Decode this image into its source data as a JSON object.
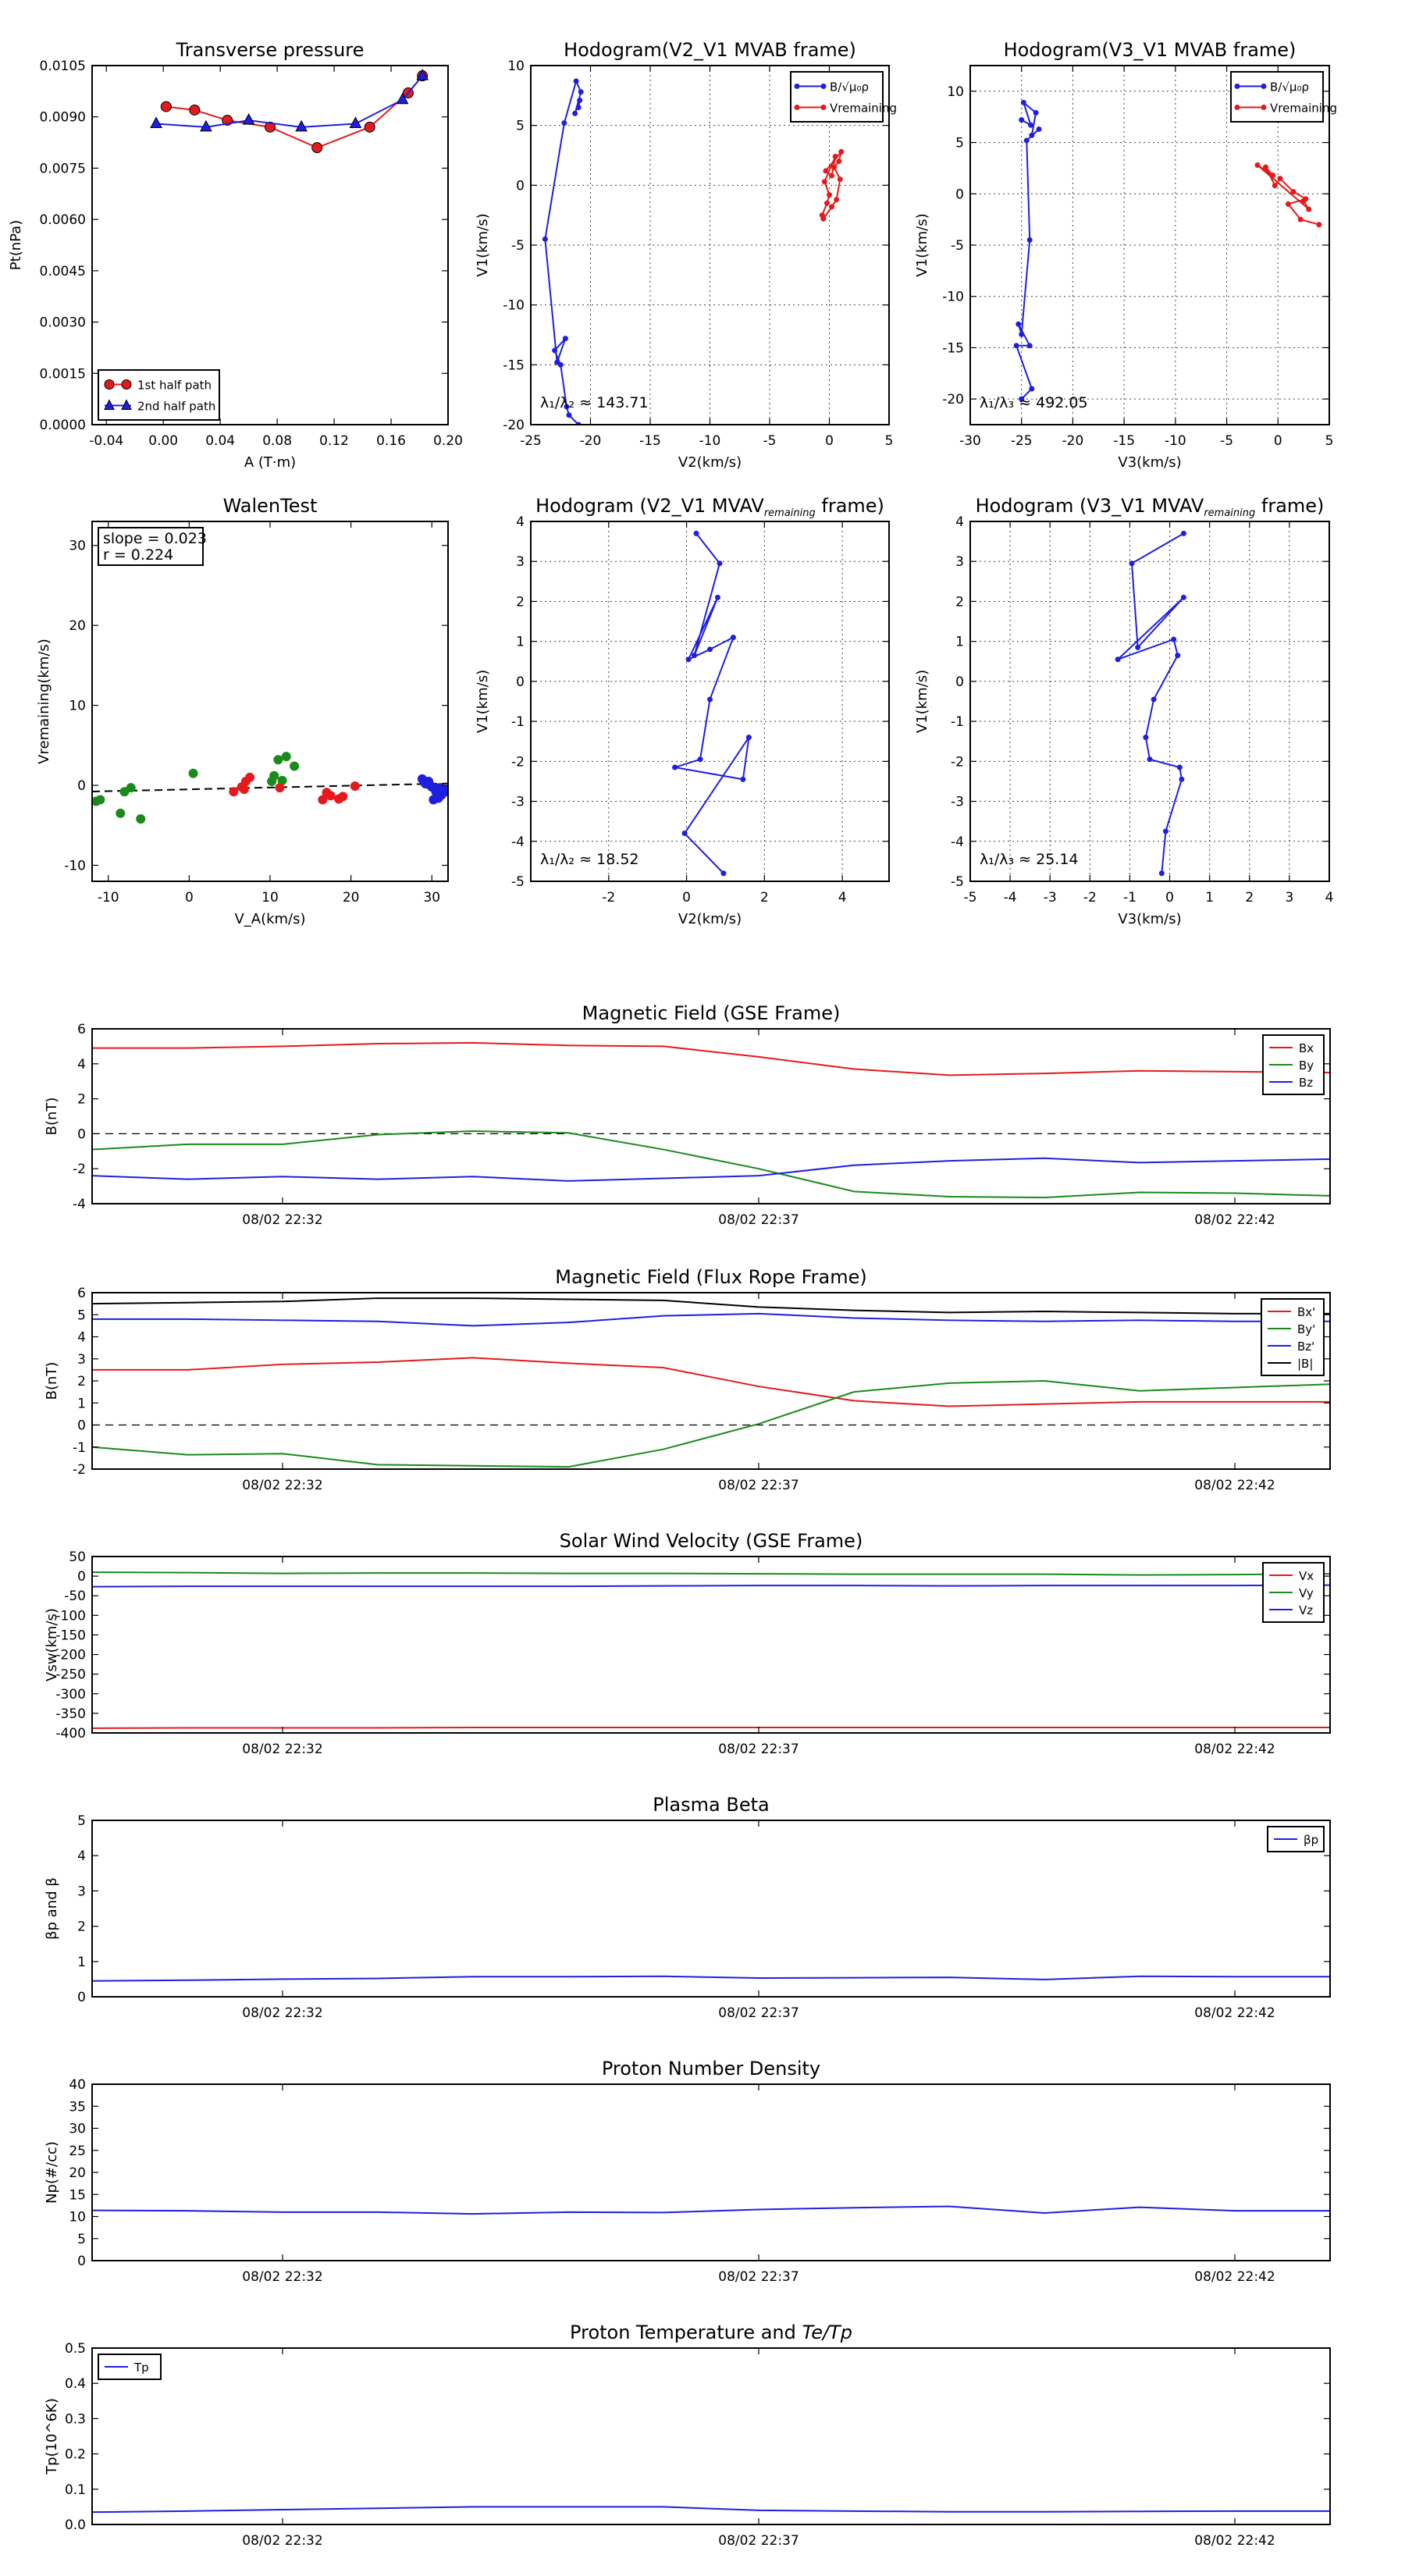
{
  "colors": {
    "red": "#e41a1c",
    "green": "#1a8a1a",
    "blue": "#1f1fe0",
    "black": "#000000",
    "grid": "#444444"
  },
  "chart_data": [
    {
      "id": "transverse-pressure",
      "type": "line",
      "title": "Transverse pressure",
      "xlabel": "A (T·m)",
      "ylabel": "Pt(nPa)",
      "xlim": [
        -0.05,
        0.2
      ],
      "ylim": [
        0.0,
        0.0105
      ],
      "xticks": [
        "-0.04",
        "0.00",
        "0.04",
        "0.08",
        "0.12",
        "0.16",
        "0.20"
      ],
      "yticks": [
        "0.0000",
        "0.0015",
        "0.0030",
        "0.0045",
        "0.0060",
        "0.0075",
        "0.0090",
        "0.0105"
      ],
      "grid": false,
      "legend": "lower-left",
      "series": [
        {
          "name": "1st half path",
          "color": "#e41a1c",
          "marker": "circle",
          "x": [
            0.182,
            0.172,
            0.145,
            0.108,
            0.075,
            0.045,
            0.022,
            0.002
          ],
          "y": [
            0.0102,
            0.0097,
            0.0087,
            0.0081,
            0.0087,
            0.0089,
            0.0092,
            0.0093
          ]
        },
        {
          "name": "2nd half path",
          "color": "#1f1fe0",
          "marker": "triangle",
          "x": [
            0.182,
            0.168,
            0.135,
            0.097,
            0.06,
            0.03,
            -0.005
          ],
          "y": [
            0.0102,
            0.0095,
            0.0088,
            0.0087,
            0.0089,
            0.0087,
            0.0088
          ]
        }
      ]
    },
    {
      "id": "hodogram-v2-v1-mvab",
      "type": "line",
      "title": "Hodogram(V2_V1 MVAB frame)",
      "xlabel": "V2(km/s)",
      "ylabel": "V1(km/s)",
      "xlim": [
        -25,
        5
      ],
      "ylim": [
        -20,
        10
      ],
      "xticks": [
        "-25",
        "-20",
        "-15",
        "-10",
        "-5",
        "0",
        "5"
      ],
      "yticks": [
        "-20",
        "-15",
        "-10",
        "-5",
        "0",
        "5",
        "10"
      ],
      "grid": true,
      "legend": "top-right",
      "annotation": "λ₁/λ₂ ≈ 143.71",
      "series": [
        {
          "name": "B/√μ₀ρ",
          "color": "#1f1fe0",
          "x": [
            -21.0,
            -21.8,
            -22.0,
            -22.5,
            -23.0,
            -22.1,
            -22.8,
            -23.8,
            -22.2,
            -21.2,
            -20.8,
            -21.3,
            -20.9,
            -21.0
          ],
          "y": [
            -20.0,
            -19.2,
            -18.5,
            -15.0,
            -13.8,
            -12.8,
            -14.8,
            -4.5,
            5.2,
            8.7,
            7.8,
            6.0,
            7.1,
            6.5
          ]
        },
        {
          "name": "V_remaining",
          "color": "#e41a1c",
          "x": [
            -0.5,
            0.2,
            0.6,
            0.9,
            0.4,
            0.8,
            1.0,
            -0.3,
            0.2,
            0.5,
            -0.4,
            0.0,
            -0.2,
            -0.6
          ],
          "y": [
            -2.8,
            -1.8,
            -1.2,
            0.5,
            1.5,
            2.0,
            2.8,
            1.2,
            0.8,
            2.4,
            0.3,
            -0.8,
            -1.5,
            -2.5
          ]
        }
      ]
    },
    {
      "id": "hodogram-v3-v1-mvab",
      "type": "line",
      "title": "Hodogram(V3_V1 MVAB frame)",
      "xlabel": "V3(km/s)",
      "ylabel": "V1(km/s)",
      "xlim": [
        -30,
        5
      ],
      "ylim": [
        -22.5,
        12.5
      ],
      "xticks": [
        "-30",
        "-25",
        "-20",
        "-15",
        "-10",
        "-5",
        "0",
        "5"
      ],
      "yticks": [
        "-20",
        "-15",
        "-10",
        "-5",
        "0",
        "5",
        "10"
      ],
      "grid": true,
      "legend": "top-right",
      "annotation": "λ₁/λ₃ ≈ 492.05",
      "series": [
        {
          "name": "B/√μ₀ρ",
          "color": "#1f1fe0",
          "x": [
            -25.0,
            -24.0,
            -25.5,
            -24.2,
            -25.3,
            -25.0,
            -24.2,
            -24.5,
            -23.3,
            -24.0,
            -23.6,
            -24.8,
            -24.1,
            -25.0
          ],
          "y": [
            -20.0,
            -19.0,
            -14.8,
            -14.8,
            -12.7,
            -13.7,
            -4.5,
            5.2,
            6.3,
            5.7,
            7.9,
            8.9,
            6.7,
            7.2
          ]
        },
        {
          "name": "V_remaining",
          "color": "#e41a1c",
          "x": [
            4.0,
            2.2,
            1.0,
            2.7,
            1.5,
            0.2,
            -0.3,
            -1.2,
            -0.5,
            -2.0,
            3.0,
            2.5
          ],
          "y": [
            -3.0,
            -2.5,
            -1.0,
            -0.5,
            0.2,
            1.5,
            0.8,
            2.6,
            1.8,
            2.8,
            -1.5,
            -0.7
          ]
        }
      ]
    },
    {
      "id": "walen-test",
      "type": "scatter",
      "title": "WalenTest",
      "xlabel": "V_A(km/s)",
      "ylabel": "V_remaining(km/s)",
      "xlim": [
        -12,
        32
      ],
      "ylim": [
        -12,
        33
      ],
      "xticks": [
        "-10",
        "0",
        "10",
        "20",
        "30"
      ],
      "yticks": [
        "-10",
        "0",
        "10",
        "20",
        "30"
      ],
      "grid": false,
      "annotation": [
        "slope = 0.023",
        "r = 0.224"
      ],
      "fit": {
        "slope": 0.023,
        "intercept": -0.5
      },
      "series": [
        {
          "color": "#1a8a1a",
          "x": [
            -11.5,
            -11.0,
            -8.5,
            -8.0,
            -7.2,
            -6.0,
            0.5,
            10.2,
            11.0,
            12.0,
            11.5,
            13.0,
            10.5
          ],
          "y": [
            -2.0,
            -1.8,
            -3.5,
            -0.8,
            -0.3,
            -4.2,
            1.5,
            0.5,
            3.2,
            3.6,
            0.6,
            2.4,
            1.2
          ]
        },
        {
          "color": "#e41a1c",
          "x": [
            5.5,
            6.5,
            7.0,
            7.5,
            6.8,
            11.2,
            16.5,
            17.0,
            17.5,
            18.5,
            19.0,
            20.5
          ],
          "y": [
            -0.8,
            -0.2,
            0.5,
            1.0,
            -0.5,
            -0.3,
            -1.8,
            -0.9,
            -1.3,
            -1.7,
            -1.4,
            -0.1
          ]
        },
        {
          "color": "#1f1fe0",
          "x": [
            28.8,
            29.2,
            29.6,
            30.0,
            30.5,
            30.8,
            31.2,
            31.6,
            32.0,
            30.2,
            29.8,
            31.0
          ],
          "y": [
            0.8,
            0.2,
            0.5,
            -0.2,
            -0.8,
            -1.6,
            -1.2,
            -0.5,
            -0.8,
            -1.8,
            0.0,
            -0.3
          ]
        }
      ]
    },
    {
      "id": "hodogram-v2-v1-mvav",
      "type": "line",
      "title": "Hodogram (V2_V1 MVAV_remaining frame)",
      "xlabel": "V2(km/s)",
      "ylabel": "V1(km/s)",
      "xlim": [
        -4,
        5.2
      ],
      "ylim": [
        -5,
        4
      ],
      "xticks": [
        "-2",
        "0",
        "2",
        "4"
      ],
      "yticks": [
        "-5",
        "-4",
        "-3",
        "-2",
        "-1",
        "0",
        "1",
        "2",
        "3",
        "4"
      ],
      "grid": true,
      "annotation": "λ₁/λ₂ ≈ 18.52",
      "series": [
        {
          "color": "#1f1fe0",
          "x": [
            0.95,
            -0.05,
            1.6,
            1.45,
            -0.3,
            0.35,
            0.6,
            1.2,
            0.6,
            0.05,
            0.8,
            0.2,
            0.85,
            0.25
          ],
          "y": [
            -4.8,
            -3.8,
            -1.4,
            -2.45,
            -2.15,
            -1.95,
            -0.45,
            1.1,
            0.8,
            0.55,
            2.1,
            0.65,
            2.95,
            3.7
          ]
        }
      ]
    },
    {
      "id": "hodogram-v3-v1-mvav",
      "type": "line",
      "title": "Hodogram (V3_V1 MVAV_remaining frame)",
      "xlabel": "V3(km/s)",
      "ylabel": "V1(km/s)",
      "xlim": [
        -5,
        4
      ],
      "ylim": [
        -5,
        4
      ],
      "xticks": [
        "-5",
        "-4",
        "-3",
        "-2",
        "-1",
        "0",
        "1",
        "2",
        "3",
        "4"
      ],
      "yticks": [
        "-5",
        "-4",
        "-3",
        "-2",
        "-1",
        "0",
        "1",
        "2",
        "3",
        "4"
      ],
      "grid": true,
      "annotation": "λ₁/λ₃ ≈ 25.14",
      "series": [
        {
          "color": "#1f1fe0",
          "x": [
            -0.2,
            -0.1,
            0.3,
            0.25,
            -0.5,
            -0.6,
            -0.4,
            0.2,
            0.1,
            -1.3,
            0.35,
            -0.8,
            -0.95,
            0.35
          ],
          "y": [
            -4.8,
            -3.75,
            -2.45,
            -2.15,
            -1.95,
            -1.4,
            -0.45,
            0.65,
            1.05,
            0.55,
            2.1,
            0.85,
            2.95,
            3.7
          ]
        }
      ]
    },
    {
      "id": "magnetic-field-gse",
      "type": "line",
      "title": "Magnetic Field (GSE Frame)",
      "ylabel": "B(nT)",
      "xlim": [
        0,
        13
      ],
      "ylim": [
        -4,
        6
      ],
      "xticks": [
        {
          "x": 2,
          "label": "08/02 22:32"
        },
        {
          "x": 7,
          "label": "08/02 22:37"
        },
        {
          "x": 12,
          "label": "08/02 22:42"
        }
      ],
      "yticks": [
        "-4",
        "-2",
        "0",
        "2",
        "4",
        "6"
      ],
      "zero_line": true,
      "legend": "top-right",
      "x": [
        0,
        1,
        2,
        3,
        4,
        5,
        6,
        7,
        8,
        9,
        10,
        11,
        12,
        13
      ],
      "series": [
        {
          "name": "Bx",
          "color": "#e41a1c",
          "values": [
            4.9,
            4.9,
            5.0,
            5.15,
            5.2,
            5.05,
            5.0,
            4.4,
            3.7,
            3.35,
            3.45,
            3.6,
            3.55,
            3.5
          ]
        },
        {
          "name": "By",
          "color": "#1a8a1a",
          "values": [
            -0.9,
            -0.6,
            -0.6,
            -0.05,
            0.15,
            0.05,
            -0.9,
            -2.0,
            -3.3,
            -3.6,
            -3.65,
            -3.35,
            -3.4,
            -3.55
          ]
        },
        {
          "name": "Bz",
          "color": "#1f1fe0",
          "values": [
            -2.4,
            -2.6,
            -2.45,
            -2.6,
            -2.45,
            -2.7,
            -2.55,
            -2.4,
            -1.8,
            -1.55,
            -1.4,
            -1.65,
            -1.55,
            -1.45
          ]
        }
      ]
    },
    {
      "id": "magnetic-field-flux-rope",
      "type": "line",
      "title": "Magnetic Field (Flux Rope Frame)",
      "ylabel": "B(nT)",
      "xlim": [
        0,
        13
      ],
      "ylim": [
        -2,
        6
      ],
      "xticks": [
        {
          "x": 2,
          "label": "08/02 22:32"
        },
        {
          "x": 7,
          "label": "08/02 22:37"
        },
        {
          "x": 12,
          "label": "08/02 22:42"
        }
      ],
      "yticks": [
        "-2",
        "-1",
        "0",
        "1",
        "2",
        "3",
        "4",
        "5",
        "6"
      ],
      "zero_line": true,
      "legend": "top-right",
      "x": [
        0,
        1,
        2,
        3,
        4,
        5,
        6,
        7,
        8,
        9,
        10,
        11,
        12,
        13
      ],
      "series": [
        {
          "name": "Bx'",
          "color": "#e41a1c",
          "values": [
            2.5,
            2.5,
            2.75,
            2.85,
            3.05,
            2.8,
            2.6,
            1.75,
            1.1,
            0.85,
            0.95,
            1.05,
            1.05,
            1.05
          ]
        },
        {
          "name": "By'",
          "color": "#1a8a1a",
          "values": [
            -1.0,
            -1.35,
            -1.3,
            -1.8,
            -1.85,
            -1.9,
            -1.1,
            0.05,
            1.5,
            1.9,
            2.0,
            1.55,
            1.7,
            1.85
          ]
        },
        {
          "name": "Bz'",
          "color": "#1f1fe0",
          "values": [
            4.8,
            4.8,
            4.75,
            4.7,
            4.5,
            4.65,
            4.95,
            5.05,
            4.85,
            4.75,
            4.7,
            4.75,
            4.7,
            4.7
          ]
        },
        {
          "name": "|B|",
          "color": "#000000",
          "values": [
            5.5,
            5.55,
            5.6,
            5.75,
            5.75,
            5.7,
            5.65,
            5.35,
            5.2,
            5.1,
            5.15,
            5.1,
            5.05,
            5.05
          ]
        }
      ]
    },
    {
      "id": "solar-wind-velocity",
      "type": "line",
      "title": "Solar Wind Velocity (GSE Frame)",
      "ylabel": "Vsw(km/s)",
      "xlim": [
        0,
        13
      ],
      "ylim": [
        -400,
        50
      ],
      "xticks": [
        {
          "x": 2,
          "label": "08/02 22:32"
        },
        {
          "x": 7,
          "label": "08/02 22:37"
        },
        {
          "x": 12,
          "label": "08/02 22:42"
        }
      ],
      "yticks": [
        "-400",
        "-350",
        "-300",
        "-250",
        "-200",
        "-150",
        "-100",
        "-50",
        "0",
        "50"
      ],
      "legend": "top-right",
      "x": [
        0,
        1,
        2,
        3,
        4,
        5,
        6,
        7,
        8,
        9,
        10,
        11,
        12,
        13
      ],
      "series": [
        {
          "name": "Vx",
          "color": "#e41a1c",
          "values": [
            -388,
            -387,
            -387,
            -387,
            -386,
            -386,
            -386,
            -386,
            -386,
            -386,
            -386,
            -386,
            -386,
            -386
          ]
        },
        {
          "name": "Vy",
          "color": "#1a8a1a",
          "values": [
            10,
            9,
            7,
            8,
            8,
            7,
            7,
            6,
            5,
            5,
            5,
            3,
            4,
            6
          ]
        },
        {
          "name": "Vz",
          "color": "#1f1fe0",
          "values": [
            -27,
            -26,
            -26,
            -26,
            -26,
            -26,
            -25,
            -24,
            -24,
            -25,
            -24,
            -24,
            -24,
            -23
          ]
        }
      ]
    },
    {
      "id": "plasma-beta",
      "type": "line",
      "title": "Plasma Beta",
      "ylabel": "βp and β",
      "xlim": [
        0,
        13
      ],
      "ylim": [
        0,
        5
      ],
      "xticks": [
        {
          "x": 2,
          "label": "08/02 22:32"
        },
        {
          "x": 7,
          "label": "08/02 22:37"
        },
        {
          "x": 12,
          "label": "08/02 22:42"
        }
      ],
      "yticks": [
        "0",
        "1",
        "2",
        "3",
        "4",
        "5"
      ],
      "legend": "top-right",
      "x": [
        0,
        1,
        2,
        3,
        4,
        5,
        6,
        7,
        8,
        9,
        10,
        11,
        12,
        13
      ],
      "series": [
        {
          "name": "βp",
          "color": "#1f1fe0",
          "values": [
            0.45,
            0.47,
            0.5,
            0.52,
            0.57,
            0.57,
            0.58,
            0.53,
            0.54,
            0.55,
            0.49,
            0.58,
            0.57,
            0.57
          ]
        }
      ]
    },
    {
      "id": "proton-number-density",
      "type": "line",
      "title": "Proton Number Density",
      "ylabel": "Np(#/cc)",
      "xlim": [
        0,
        13
      ],
      "ylim": [
        0,
        40
      ],
      "xticks": [
        {
          "x": 2,
          "label": "08/02 22:32"
        },
        {
          "x": 7,
          "label": "08/02 22:37"
        },
        {
          "x": 12,
          "label": "08/02 22:42"
        }
      ],
      "yticks": [
        "0",
        "5",
        "10",
        "15",
        "20",
        "25",
        "30",
        "35",
        "40"
      ],
      "x": [
        0,
        1,
        2,
        3,
        4,
        5,
        6,
        7,
        8,
        9,
        10,
        11,
        12,
        13
      ],
      "series": [
        {
          "color": "#1f1fe0",
          "values": [
            11.4,
            11.3,
            11.0,
            11.0,
            10.6,
            11.0,
            10.9,
            11.6,
            12.0,
            12.3,
            10.8,
            12.1,
            11.3,
            11.3
          ]
        }
      ]
    },
    {
      "id": "proton-temperature",
      "type": "line",
      "title": "Proton Temperature and Te/Tp",
      "ylabel": "Tp(10^6K)",
      "xlim": [
        0,
        13
      ],
      "ylim": [
        0,
        0.5
      ],
      "xticks": [
        {
          "x": 2,
          "label": "08/02 22:32"
        },
        {
          "x": 7,
          "label": "08/02 22:37"
        },
        {
          "x": 12,
          "label": "08/02 22:42"
        }
      ],
      "yticks": [
        "0.0",
        "0.1",
        "0.2",
        "0.3",
        "0.4",
        "0.5"
      ],
      "legend": "top-left",
      "x": [
        0,
        1,
        2,
        3,
        4,
        5,
        6,
        7,
        8,
        9,
        10,
        11,
        12,
        13
      ],
      "series": [
        {
          "name": "Tp",
          "color": "#1f1fe0",
          "values": [
            0.035,
            0.038,
            0.042,
            0.046,
            0.05,
            0.05,
            0.05,
            0.04,
            0.038,
            0.036,
            0.036,
            0.037,
            0.038,
            0.038
          ]
        }
      ]
    }
  ]
}
